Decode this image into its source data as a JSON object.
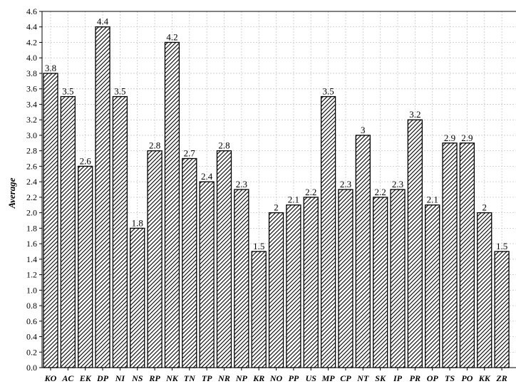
{
  "chart_data": {
    "type": "bar",
    "title": "",
    "xlabel": "",
    "ylabel": "Average",
    "ylim": [
      0,
      4.6
    ],
    "ytick_step": 0.2,
    "grid": true,
    "bar_fill": "diagonal-hatch",
    "categories": [
      "KO",
      "AC",
      "EK",
      "DP",
      "NI",
      "NS",
      "RP",
      "NK",
      "TN",
      "TP",
      "NR",
      "NP",
      "KR",
      "NO",
      "PP",
      "US",
      "MP",
      "CP",
      "NT",
      "SK",
      "IP",
      "PR",
      "OP",
      "TS",
      "PO",
      "KK",
      "ZR"
    ],
    "values": [
      3.8,
      3.5,
      2.6,
      4.4,
      3.5,
      1.8,
      2.8,
      4.2,
      2.7,
      2.4,
      2.8,
      2.3,
      1.5,
      2.0,
      2.1,
      2.2,
      3.5,
      2.3,
      3.0,
      2.2,
      2.3,
      3.2,
      2.1,
      2.9,
      2.9,
      2.0,
      1.5
    ],
    "value_labels": [
      "3.8",
      "3.5",
      "2.6",
      "4.4",
      "3.5",
      "1.8",
      "2.8",
      "4.2",
      "2.7",
      "2.4",
      "2.8",
      "2.3",
      "1.5",
      "2",
      "2.1",
      "2.2",
      "3.5",
      "2.3",
      "3",
      "2.2",
      "2.3",
      "3.2",
      "2.1",
      "2.9",
      "2.9",
      "2",
      "1.5"
    ]
  }
}
